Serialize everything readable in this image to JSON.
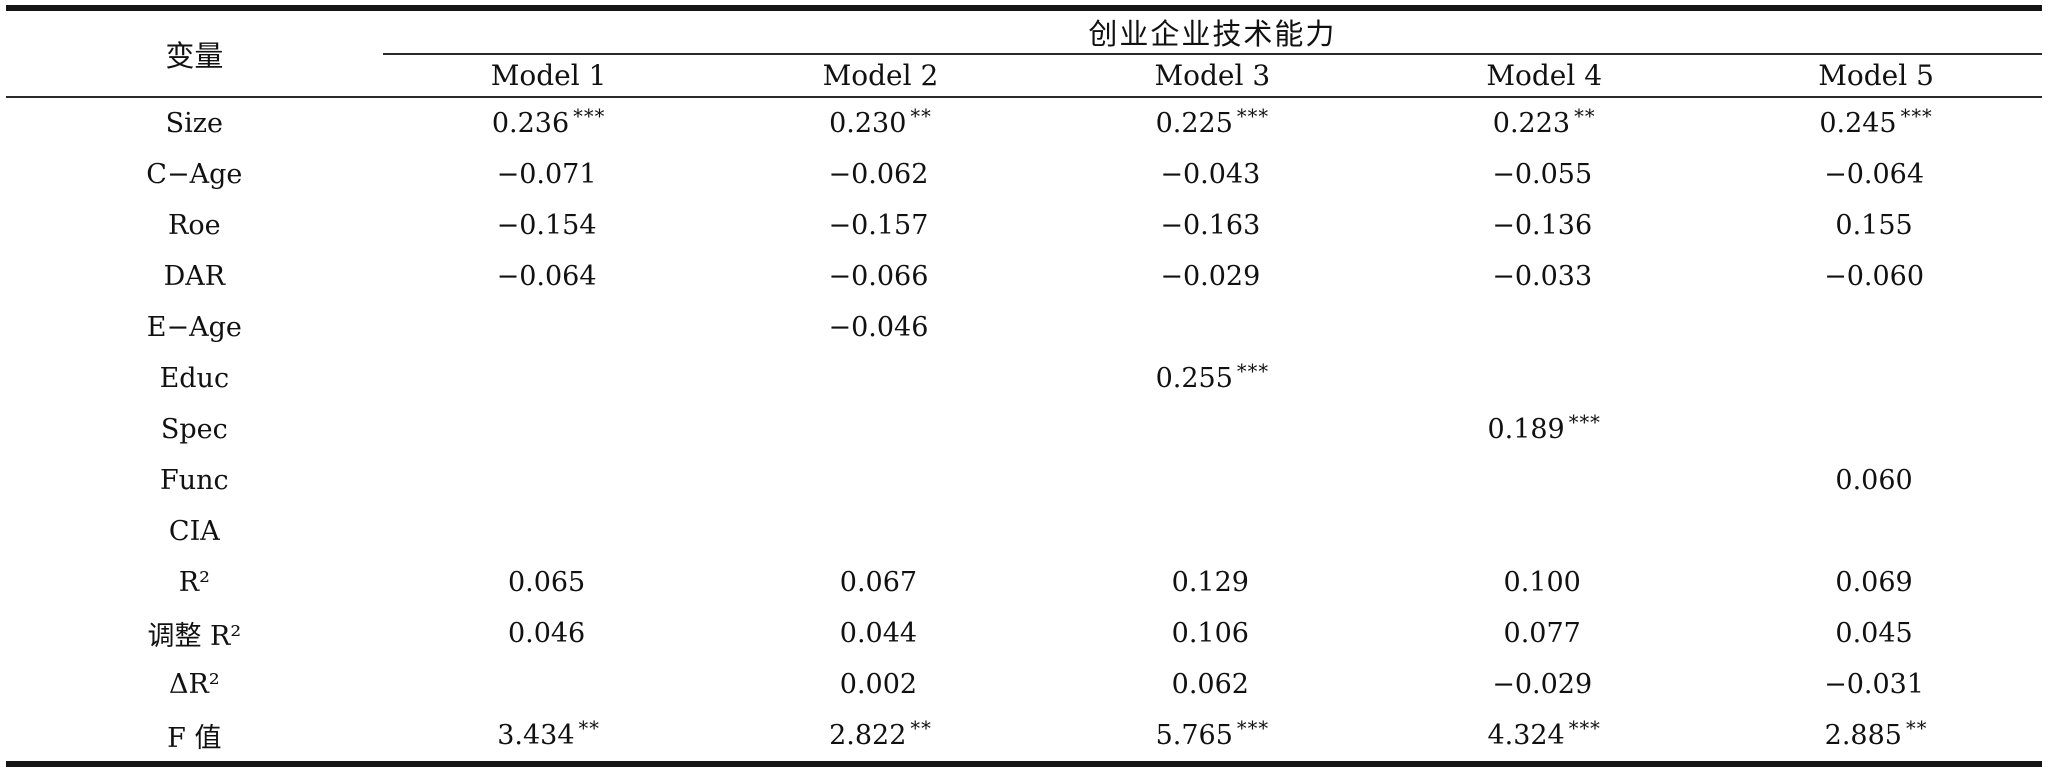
{
  "table": {
    "header": {
      "variable_label": "变量",
      "span_label": "创业企业技术能力",
      "models": [
        "Model 1",
        "Model 2",
        "Model 3",
        "Model 4",
        "Model 5"
      ]
    },
    "rows": [
      {
        "label": "Size",
        "cells": [
          {
            "v": "0.236",
            "s": "***"
          },
          {
            "v": "0.230",
            "s": "**"
          },
          {
            "v": "0.225",
            "s": "***"
          },
          {
            "v": "0.223",
            "s": "**"
          },
          {
            "v": "0.245",
            "s": "***"
          }
        ]
      },
      {
        "label": "C−Age",
        "cells": [
          {
            "v": "−0.071",
            "s": ""
          },
          {
            "v": "−0.062",
            "s": ""
          },
          {
            "v": "−0.043",
            "s": ""
          },
          {
            "v": "−0.055",
            "s": ""
          },
          {
            "v": "−0.064",
            "s": ""
          }
        ]
      },
      {
        "label": "Roe",
        "cells": [
          {
            "v": "−0.154",
            "s": ""
          },
          {
            "v": "−0.157",
            "s": ""
          },
          {
            "v": "−0.163",
            "s": ""
          },
          {
            "v": "−0.136",
            "s": ""
          },
          {
            "v": "0.155",
            "s": ""
          }
        ]
      },
      {
        "label": "DAR",
        "cells": [
          {
            "v": "−0.064",
            "s": ""
          },
          {
            "v": "−0.066",
            "s": ""
          },
          {
            "v": "−0.029",
            "s": ""
          },
          {
            "v": "−0.033",
            "s": ""
          },
          {
            "v": "−0.060",
            "s": ""
          }
        ]
      },
      {
        "label": "E−Age",
        "cells": [
          {
            "v": "",
            "s": ""
          },
          {
            "v": "−0.046",
            "s": ""
          },
          {
            "v": "",
            "s": ""
          },
          {
            "v": "",
            "s": ""
          },
          {
            "v": "",
            "s": ""
          }
        ]
      },
      {
        "label": "Educ",
        "cells": [
          {
            "v": "",
            "s": ""
          },
          {
            "v": "",
            "s": ""
          },
          {
            "v": "0.255",
            "s": "***"
          },
          {
            "v": "",
            "s": ""
          },
          {
            "v": "",
            "s": ""
          }
        ]
      },
      {
        "label": "Spec",
        "cells": [
          {
            "v": "",
            "s": ""
          },
          {
            "v": "",
            "s": ""
          },
          {
            "v": "",
            "s": ""
          },
          {
            "v": "0.189",
            "s": "***"
          },
          {
            "v": "",
            "s": ""
          }
        ]
      },
      {
        "label": "Func",
        "cells": [
          {
            "v": "",
            "s": ""
          },
          {
            "v": "",
            "s": ""
          },
          {
            "v": "",
            "s": ""
          },
          {
            "v": "",
            "s": ""
          },
          {
            "v": "0.060",
            "s": ""
          }
        ]
      },
      {
        "label": "CIA",
        "cells": [
          {
            "v": "",
            "s": ""
          },
          {
            "v": "",
            "s": ""
          },
          {
            "v": "",
            "s": ""
          },
          {
            "v": "",
            "s": ""
          },
          {
            "v": "",
            "s": ""
          }
        ]
      },
      {
        "label": "R²",
        "cells": [
          {
            "v": "0.065",
            "s": ""
          },
          {
            "v": "0.067",
            "s": ""
          },
          {
            "v": "0.129",
            "s": ""
          },
          {
            "v": "0.100",
            "s": ""
          },
          {
            "v": "0.069",
            "s": ""
          }
        ]
      },
      {
        "label": "调整 R²",
        "cells": [
          {
            "v": "0.046",
            "s": ""
          },
          {
            "v": "0.044",
            "s": ""
          },
          {
            "v": "0.106",
            "s": ""
          },
          {
            "v": "0.077",
            "s": ""
          },
          {
            "v": "0.045",
            "s": ""
          }
        ]
      },
      {
        "label": "ΔR²",
        "cells": [
          {
            "v": "",
            "s": ""
          },
          {
            "v": "0.002",
            "s": ""
          },
          {
            "v": "0.062",
            "s": ""
          },
          {
            "v": "−0.029",
            "s": ""
          },
          {
            "v": "−0.031",
            "s": ""
          }
        ]
      },
      {
        "label": "F 值",
        "cells": [
          {
            "v": "3.434",
            "s": "**"
          },
          {
            "v": "2.822",
            "s": "**"
          },
          {
            "v": "5.765",
            "s": "***"
          },
          {
            "v": "4.324",
            "s": "***"
          },
          {
            "v": "2.885",
            "s": "**"
          }
        ]
      }
    ]
  }
}
